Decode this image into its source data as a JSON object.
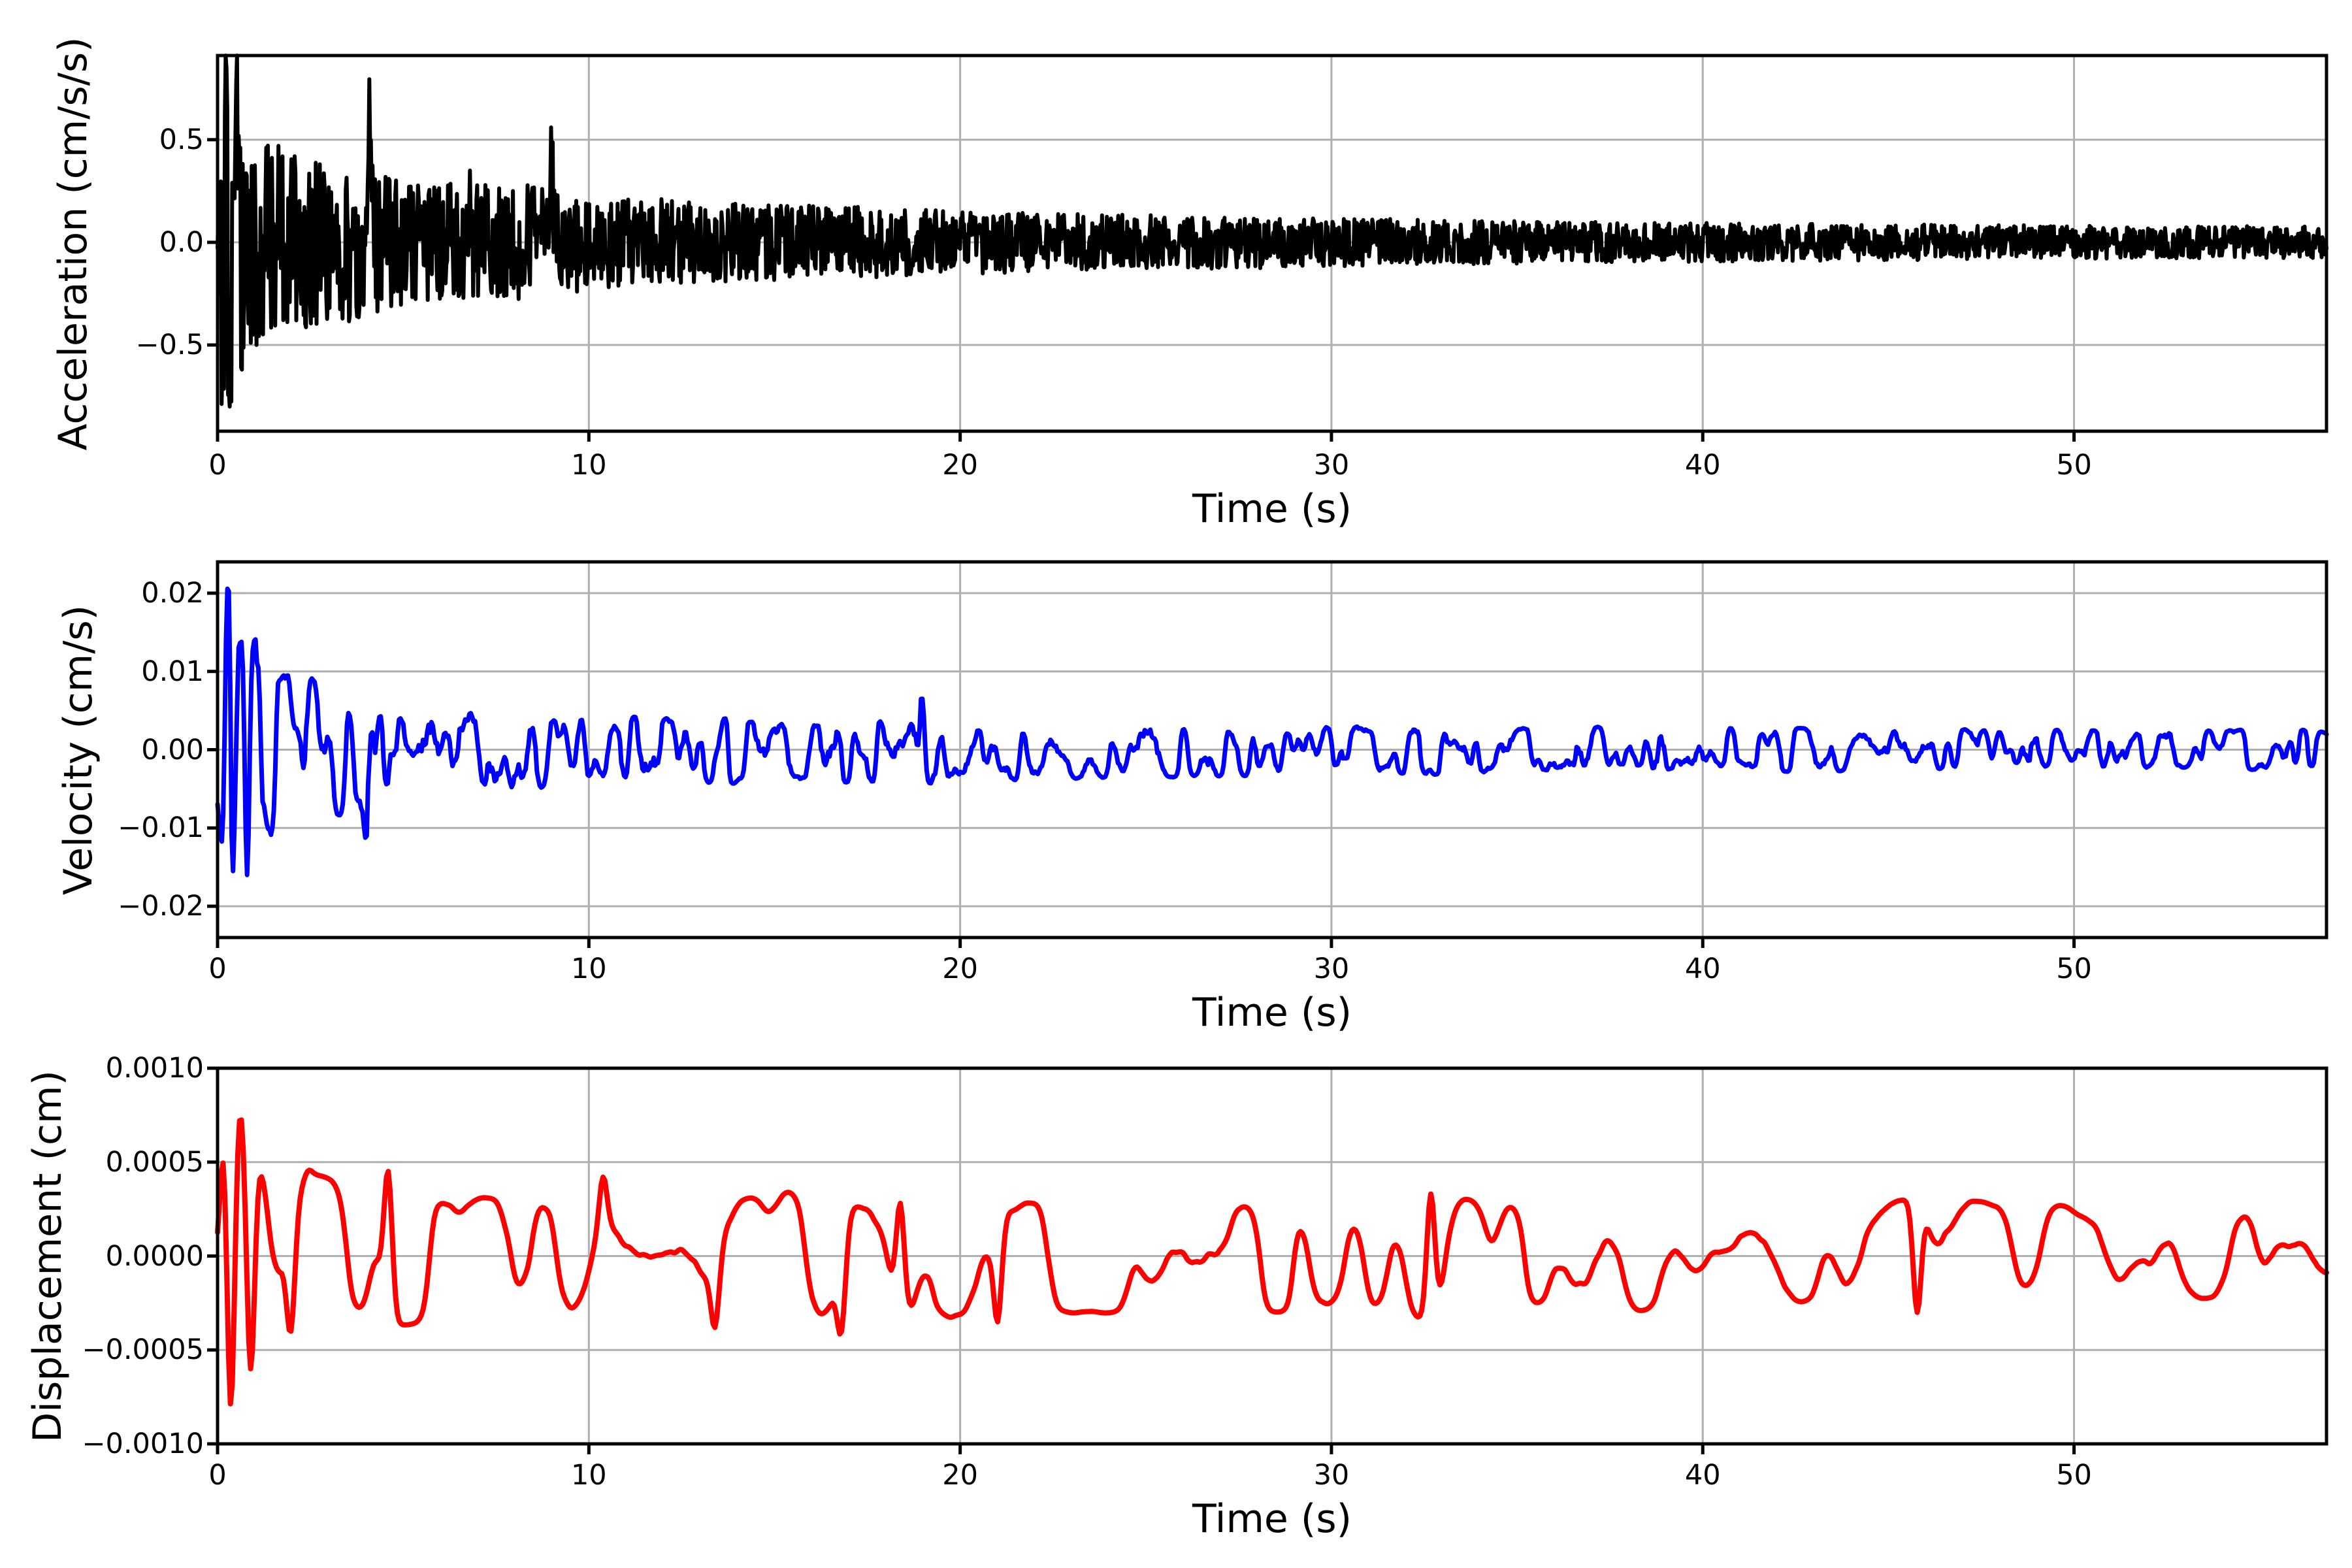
{
  "figure": {
    "background": "#ffffff",
    "grid_color": "#b0b0b0",
    "spine_color": "#000000",
    "tick_color": "#000000",
    "text_color": "#000000"
  },
  "chart_data": [
    {
      "id": "acceleration",
      "type": "line",
      "title": "",
      "xlabel": "Time (s)",
      "ylabel": "Acceleration (cm/s/s)",
      "color": "#000000",
      "line_width": 6,
      "grid": true,
      "legend": null,
      "xlim": [
        0,
        56.8
      ],
      "ylim": [
        -0.92,
        0.91
      ],
      "xticks": {
        "values": [
          0,
          10,
          20,
          30,
          40,
          50
        ],
        "labels": [
          "0",
          "10",
          "20",
          "30",
          "40",
          "50"
        ]
      },
      "yticks": {
        "values": [
          0.5,
          0.0,
          -0.5
        ],
        "labels": [
          "0.5",
          "0.0",
          "−0.5"
        ]
      },
      "peaks": {
        "max": 0.85,
        "t_max": 0.23,
        "min": -0.8,
        "t_min": 0.32
      },
      "character": "dense high-frequency seismic acceleration noise, amplitude decaying from ~0.85 cm/s/s at onset to ~0.07 cm/s/s at 57 s",
      "synthesis": {
        "seed": 101,
        "n": 2600,
        "duration": 56.8,
        "smooth_window": 1,
        "smooth_passes": 0,
        "shape": 0.8,
        "spike_width": 2,
        "envelope": [
          [
            0,
            0.3
          ],
          [
            0.1,
            0.88
          ],
          [
            0.35,
            0.86
          ],
          [
            0.6,
            0.72
          ],
          [
            0.9,
            0.6
          ],
          [
            1.3,
            0.52
          ],
          [
            2,
            0.46
          ],
          [
            3,
            0.42
          ],
          [
            4,
            0.4
          ],
          [
            5,
            0.34
          ],
          [
            6,
            0.31
          ],
          [
            7,
            0.29
          ],
          [
            8.5,
            0.3
          ],
          [
            10,
            0.24
          ],
          [
            12,
            0.22
          ],
          [
            14,
            0.2
          ],
          [
            17,
            0.18
          ],
          [
            20,
            0.16
          ],
          [
            24,
            0.14
          ],
          [
            28,
            0.13
          ],
          [
            32,
            0.115
          ],
          [
            36,
            0.105
          ],
          [
            40,
            0.1
          ],
          [
            45,
            0.09
          ],
          [
            50,
            0.085
          ],
          [
            56.8,
            0.08
          ]
        ],
        "spikes": [
          [
            0.23,
            0.85
          ],
          [
            0.32,
            -0.8
          ],
          [
            0.5,
            0.78
          ],
          [
            0.65,
            -0.62
          ],
          [
            1.05,
            -0.5
          ],
          [
            1.65,
            0.47
          ],
          [
            2.75,
            0.38
          ],
          [
            4.1,
            0.46
          ],
          [
            6.8,
            0.35
          ],
          [
            9.0,
            0.32
          ]
        ]
      }
    },
    {
      "id": "velocity",
      "type": "line",
      "title": "",
      "xlabel": "Time (s)",
      "ylabel": "Velocity (cm/s)",
      "color": "#0000ff",
      "line_width": 7,
      "grid": true,
      "legend": null,
      "xlim": [
        0,
        56.8
      ],
      "ylim": [
        -0.024,
        0.024
      ],
      "xticks": {
        "values": [
          0,
          10,
          20,
          30,
          40,
          50
        ],
        "labels": [
          "0",
          "10",
          "20",
          "30",
          "40",
          "50"
        ]
      },
      "yticks": {
        "values": [
          0.02,
          0.01,
          0.0,
          -0.01,
          -0.02
        ],
        "labels": [
          "0.02",
          "0.01",
          "0.00",
          "−0.01",
          "−0.02"
        ]
      },
      "peaks": {
        "max": 0.022,
        "t_max": 0.25,
        "min": -0.016,
        "t_min": 0.8
      },
      "character": "band-limited seismic velocity trace, amplitude decaying from ~0.022 cm/s at onset to ~0.0025 cm/s at 57 s",
      "synthesis": {
        "seed": 202,
        "n": 1500,
        "duration": 56.8,
        "smooth_window": 5,
        "smooth_passes": 2,
        "shape": 0.8,
        "spike_width": 3,
        "envelope": [
          [
            0,
            0.008
          ],
          [
            0.2,
            0.023
          ],
          [
            0.5,
            0.019
          ],
          [
            0.8,
            0.017
          ],
          [
            1.2,
            0.013
          ],
          [
            1.8,
            0.011
          ],
          [
            2.5,
            0.0095
          ],
          [
            3.5,
            0.0085
          ],
          [
            4.5,
            0.0075
          ],
          [
            5.5,
            0.0068
          ],
          [
            7,
            0.006
          ],
          [
            8.5,
            0.0055
          ],
          [
            10,
            0.005
          ],
          [
            12,
            0.0047
          ],
          [
            14,
            0.0044
          ],
          [
            16,
            0.0042
          ],
          [
            19,
            0.0048
          ],
          [
            22,
            0.004
          ],
          [
            25,
            0.0037
          ],
          [
            28,
            0.0035
          ],
          [
            32,
            0.0033
          ],
          [
            36,
            0.0031
          ],
          [
            40,
            0.003
          ],
          [
            45,
            0.0028
          ],
          [
            50,
            0.0027
          ],
          [
            56.8,
            0.0026
          ]
        ],
        "spikes": [
          [
            0.25,
            0.022
          ],
          [
            0.4,
            -0.0155
          ],
          [
            0.8,
            -0.016
          ],
          [
            1.1,
            0.0105
          ],
          [
            4.0,
            -0.011
          ],
          [
            19.0,
            0.0065
          ]
        ]
      }
    },
    {
      "id": "displacement",
      "type": "line",
      "title": "",
      "xlabel": "Time (s)",
      "ylabel": "Displacement (cm)",
      "color": "#ff0000",
      "line_width": 8,
      "grid": true,
      "legend": null,
      "xlim": [
        0,
        56.8
      ],
      "ylim": [
        -0.001,
        0.001
      ],
      "xticks": {
        "values": [
          0,
          10,
          20,
          30,
          40,
          50
        ],
        "labels": [
          "0",
          "10",
          "20",
          "30",
          "40",
          "50"
        ]
      },
      "yticks": {
        "values": [
          0.001,
          0.0005,
          0.0,
          -0.0005,
          -0.001
        ],
        "labels": [
          "0.0010",
          "0.0005",
          "0.0000",
          "−0.0005",
          "−0.0010"
        ]
      },
      "peaks": {
        "max": 0.0009,
        "t_max": 0.2,
        "min": -0.0008,
        "t_min": 0.36
      },
      "character": "smooth low-frequency seismic displacement trace, initial swing to ~+0.0009 / −0.0008 cm then wandering within about ±0.0004 cm",
      "synthesis": {
        "seed": 303,
        "n": 1150,
        "duration": 56.8,
        "smooth_window": 11,
        "smooth_passes": 3,
        "shape": 0.9,
        "spike_width": 4,
        "envelope": [
          [
            0,
            0.0004
          ],
          [
            0.25,
            0.00095
          ],
          [
            0.5,
            0.00085
          ],
          [
            0.8,
            0.0007
          ],
          [
            1.2,
            0.00055
          ],
          [
            1.8,
            0.00042
          ],
          [
            2.5,
            0.00045
          ],
          [
            3.5,
            0.0004
          ],
          [
            5,
            0.00038
          ],
          [
            7,
            0.00032
          ],
          [
            9,
            0.00035
          ],
          [
            10.5,
            0.00042
          ],
          [
            12,
            0.00032
          ],
          [
            14,
            0.00036
          ],
          [
            16,
            0.0004
          ],
          [
            17.5,
            0.00038
          ],
          [
            19,
            0.0004
          ],
          [
            21,
            0.00034
          ],
          [
            23,
            0.00032
          ],
          [
            25,
            0.0003
          ],
          [
            27,
            0.00032
          ],
          [
            29,
            0.0003
          ],
          [
            31,
            0.00036
          ],
          [
            33,
            0.00038
          ],
          [
            35,
            0.0003
          ],
          [
            37,
            0.00032
          ],
          [
            39,
            0.0003
          ],
          [
            41,
            0.00028
          ],
          [
            43,
            0.00028
          ],
          [
            45,
            0.0003
          ],
          [
            47,
            0.00032
          ],
          [
            49,
            0.0003
          ],
          [
            51,
            0.00028
          ],
          [
            53,
            0.00026
          ],
          [
            55,
            0.00028
          ],
          [
            56.8,
            0.00028
          ]
        ],
        "spikes": [
          [
            0.2,
            0.0009
          ],
          [
            0.36,
            -0.0008
          ],
          [
            0.6,
            0.00075
          ],
          [
            0.9,
            -0.0006
          ],
          [
            2.0,
            -0.0004
          ],
          [
            2.4,
            0.00045
          ],
          [
            4.6,
            0.00045
          ],
          [
            10.4,
            0.00042
          ],
          [
            13.4,
            -0.00038
          ],
          [
            16.8,
            -0.0004
          ],
          [
            18.4,
            0.00028
          ],
          [
            21.0,
            -0.00035
          ],
          [
            32.7,
            0.00033
          ],
          [
            45.8,
            -0.0003
          ]
        ]
      }
    }
  ]
}
